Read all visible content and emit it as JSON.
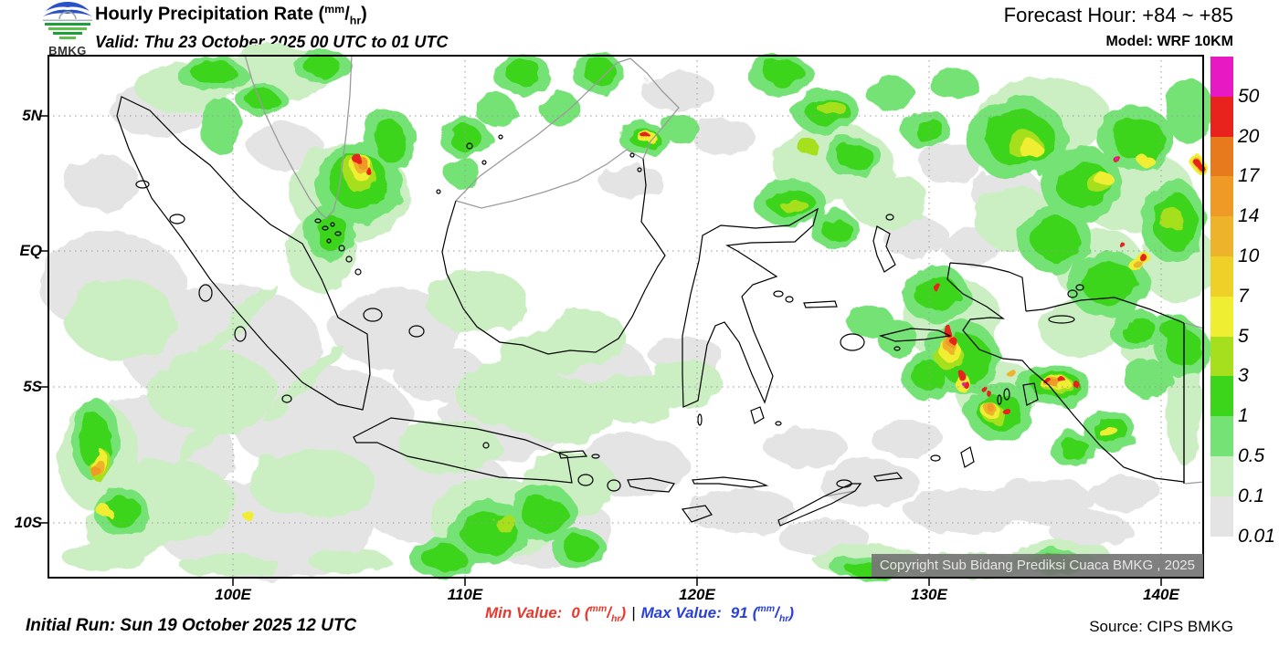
{
  "header": {
    "logo_text": "BMKG",
    "title": "Hourly Precipitation Rate",
    "valid": "Valid: Thu 23 October 2025 00 UTC to 01 UTC",
    "forecast": "Forecast Hour: +84 ~ +85",
    "model": "Model: WRF 10KM"
  },
  "units": {
    "num": "mm",
    "den": "hr"
  },
  "axes": {
    "lat": [
      "5N",
      "EQ",
      "5S",
      "10S"
    ],
    "lon": [
      "100E",
      "110E",
      "120E",
      "130E",
      "140E"
    ]
  },
  "colorbar": {
    "labels": [
      "50",
      "20",
      "17",
      "14",
      "10",
      "7",
      "5",
      "3",
      "1",
      "0.5",
      "0.1",
      "0.01"
    ],
    "colors": [
      "#E619C3",
      "#E8221C",
      "#E87A1E",
      "#EF9A26",
      "#EDB32B",
      "#EFD028",
      "#F0EE33",
      "#A6DF1E",
      "#3DD41C",
      "#74E274",
      "#CBEFC3",
      "#E4E4E4"
    ]
  },
  "map": {
    "copyright": "Copyright Sub Bidang Prediksi Cuaca BMKG , 2025"
  },
  "footer": {
    "initial_run": "Initial Run: Sun 19 October 2025 12 UTC",
    "min_label": "Min Value:",
    "min_value": "0",
    "pipe": "|",
    "max_label": "Max Value:",
    "max_value": "91",
    "source": "Source: CIPS BMKG"
  },
  "chart_data": {
    "type": "heatmap",
    "title": "Hourly Precipitation Rate (mm/hr)",
    "region": "Indonesia, approx. 92E-142E / 7N-12S",
    "valid_time": "Thu 23 October 2025 00 UTC to 01 UTC",
    "forecast_hours": [
      84,
      85
    ],
    "model": "WRF 10KM",
    "initial_run": "Sun 19 October 2025 12 UTC",
    "unit": "mm/hr",
    "min_value": 0,
    "max_value": 91,
    "legend": {
      "thresholds_low_to_high": [
        0.01,
        0.1,
        0.5,
        1,
        3,
        5,
        7,
        10,
        14,
        17,
        20,
        50
      ],
      "colors_low_to_high": [
        "#E4E4E4",
        "#CBEFC3",
        "#74E274",
        "#3DD41C",
        "#A6DF1E",
        "#F0EE33",
        "#EFD028",
        "#EDB32B",
        "#EF9A26",
        "#E87A1E",
        "#E8221C",
        "#E619C3"
      ]
    },
    "x_axis": {
      "type": "longitude",
      "ticks": [
        "100E",
        "110E",
        "120E",
        "130E",
        "140E"
      ]
    },
    "y_axis": {
      "type": "latitude",
      "ticks": [
        "5N",
        "EQ",
        "5S",
        "10S"
      ]
    },
    "heavy_rain_areas_depicted": [
      "Malacca Strait off NE Sumatra (red core >20)",
      "NE Sabah coast (red core)",
      "Maluku / Bird's Head Papua cluster (multiple red cores, small >50 spots)",
      "Central Papua band ~4S (red/orange)",
      "Pacific NE of Papua (red spots)",
      "SW Indian Ocean ~92E 8-9S (orange core)"
    ]
  }
}
